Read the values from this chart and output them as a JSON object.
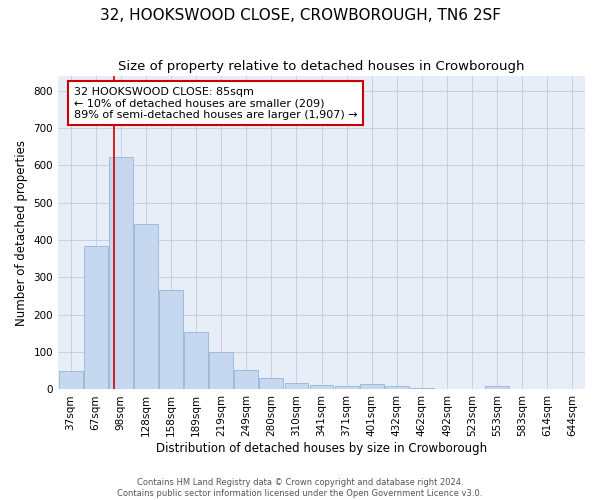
{
  "title": "32, HOOKSWOOD CLOSE, CROWBOROUGH, TN6 2SF",
  "subtitle": "Size of property relative to detached houses in Crowborough",
  "xlabel": "Distribution of detached houses by size in Crowborough",
  "ylabel": "Number of detached properties",
  "footer_line1": "Contains HM Land Registry data © Crown copyright and database right 2024.",
  "footer_line2": "Contains public sector information licensed under the Open Government Licence v3.0.",
  "categories": [
    "37sqm",
    "67sqm",
    "98sqm",
    "128sqm",
    "158sqm",
    "189sqm",
    "219sqm",
    "249sqm",
    "280sqm",
    "310sqm",
    "341sqm",
    "371sqm",
    "401sqm",
    "432sqm",
    "462sqm",
    "492sqm",
    "523sqm",
    "553sqm",
    "583sqm",
    "614sqm",
    "644sqm"
  ],
  "values": [
    50,
    383,
    623,
    443,
    265,
    155,
    100,
    52,
    30,
    18,
    12,
    10,
    15,
    8,
    5,
    0,
    0,
    8,
    0,
    0,
    0
  ],
  "bar_color": "#c5d8f0",
  "bar_edge_color": "#a0bbd8",
  "background_color": "#ffffff",
  "plot_bg_color": "#e8eef8",
  "grid_color": "#c0cce0",
  "vline_x": 1.72,
  "vline_color": "#cc0000",
  "annotation_text": "32 HOOKSWOOD CLOSE: 85sqm\n← 10% of detached houses are smaller (209)\n89% of semi-detached houses are larger (1,907) →",
  "annotation_box_color": "#cc0000",
  "ylim": [
    0,
    840
  ],
  "yticks": [
    0,
    100,
    200,
    300,
    400,
    500,
    600,
    700,
    800
  ],
  "title_fontsize": 11,
  "subtitle_fontsize": 9.5,
  "axis_label_fontsize": 8.5,
  "tick_fontsize": 7.5,
  "annotation_fontsize": 8,
  "footer_fontsize": 6
}
